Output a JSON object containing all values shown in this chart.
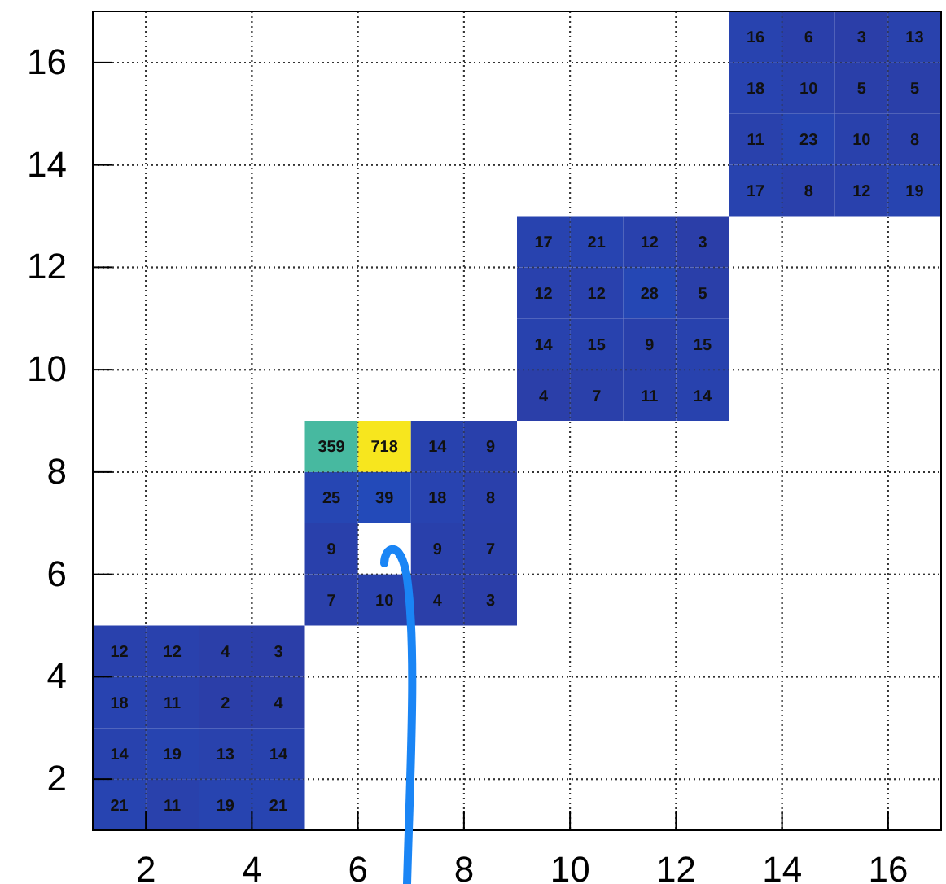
{
  "chart_data": {
    "type": "heatmap",
    "x": [
      1.5,
      2.5,
      3.5,
      4.5,
      5.5,
      6.5,
      7.5,
      8.5,
      9.5,
      10.5,
      11.5,
      12.5,
      13.5,
      14.5,
      15.5,
      16.5
    ],
    "y": [
      16.5,
      15.5,
      14.5,
      13.5,
      12.5,
      11.5,
      10.5,
      9.5,
      8.5,
      7.5,
      6.5,
      5.5,
      4.5,
      3.5,
      2.5,
      1.5
    ],
    "xlim": [
      1,
      17
    ],
    "ylim": [
      1,
      17
    ],
    "xticks": [
      2,
      4,
      6,
      8,
      10,
      12,
      14,
      16
    ],
    "yticks": [
      2,
      4,
      6,
      8,
      10,
      12,
      14,
      16
    ],
    "grid": true,
    "data_labels": true,
    "colors": [
      "#2b3ea8",
      "#1560d8",
      "#1f8fd0",
      "#2fb3b0",
      "#5fbf8f",
      "#b0bd60",
      "#f0c840",
      "#f7e61e"
    ],
    "cells": [
      [
        null,
        null,
        null,
        null,
        null,
        null,
        null,
        null,
        null,
        null,
        null,
        null,
        16,
        6,
        3,
        13
      ],
      [
        null,
        null,
        null,
        null,
        null,
        null,
        null,
        null,
        null,
        null,
        null,
        null,
        18,
        10,
        5,
        5
      ],
      [
        null,
        null,
        null,
        null,
        null,
        null,
        null,
        null,
        null,
        null,
        null,
        null,
        11,
        23,
        10,
        8
      ],
      [
        null,
        null,
        null,
        null,
        null,
        null,
        null,
        null,
        null,
        null,
        null,
        null,
        17,
        8,
        12,
        19
      ],
      [
        null,
        null,
        null,
        null,
        null,
        null,
        null,
        null,
        17,
        21,
        12,
        3,
        null,
        null,
        null,
        null
      ],
      [
        null,
        null,
        null,
        null,
        null,
        null,
        null,
        null,
        12,
        12,
        28,
        5,
        null,
        null,
        null,
        null
      ],
      [
        null,
        null,
        null,
        null,
        null,
        null,
        null,
        null,
        14,
        15,
        9,
        15,
        null,
        null,
        null,
        null
      ],
      [
        null,
        null,
        null,
        null,
        null,
        null,
        null,
        null,
        4,
        7,
        11,
        14,
        null,
        null,
        null,
        null
      ],
      [
        null,
        null,
        null,
        null,
        359,
        718,
        14,
        9,
        null,
        null,
        null,
        null,
        null,
        null,
        null,
        null
      ],
      [
        null,
        null,
        null,
        null,
        25,
        39,
        18,
        8,
        null,
        null,
        null,
        null,
        null,
        null,
        null,
        null
      ],
      [
        null,
        null,
        null,
        null,
        9,
        null,
        9,
        7,
        null,
        null,
        null,
        null,
        null,
        null,
        null,
        null
      ],
      [
        null,
        null,
        null,
        null,
        7,
        10,
        4,
        3,
        null,
        null,
        null,
        null,
        null,
        null,
        null,
        null
      ],
      [
        12,
        12,
        4,
        3,
        null,
        null,
        null,
        null,
        null,
        null,
        null,
        null,
        null,
        null,
        null,
        null
      ],
      [
        18,
        11,
        2,
        4,
        null,
        null,
        null,
        null,
        null,
        null,
        null,
        null,
        null,
        null,
        null,
        null
      ],
      [
        14,
        19,
        13,
        14,
        null,
        null,
        null,
        null,
        null,
        null,
        null,
        null,
        null,
        null,
        null,
        null
      ],
      [
        21,
        11,
        19,
        21,
        null,
        null,
        null,
        null,
        null,
        null,
        null,
        null,
        null,
        null,
        null,
        null
      ]
    ]
  }
}
